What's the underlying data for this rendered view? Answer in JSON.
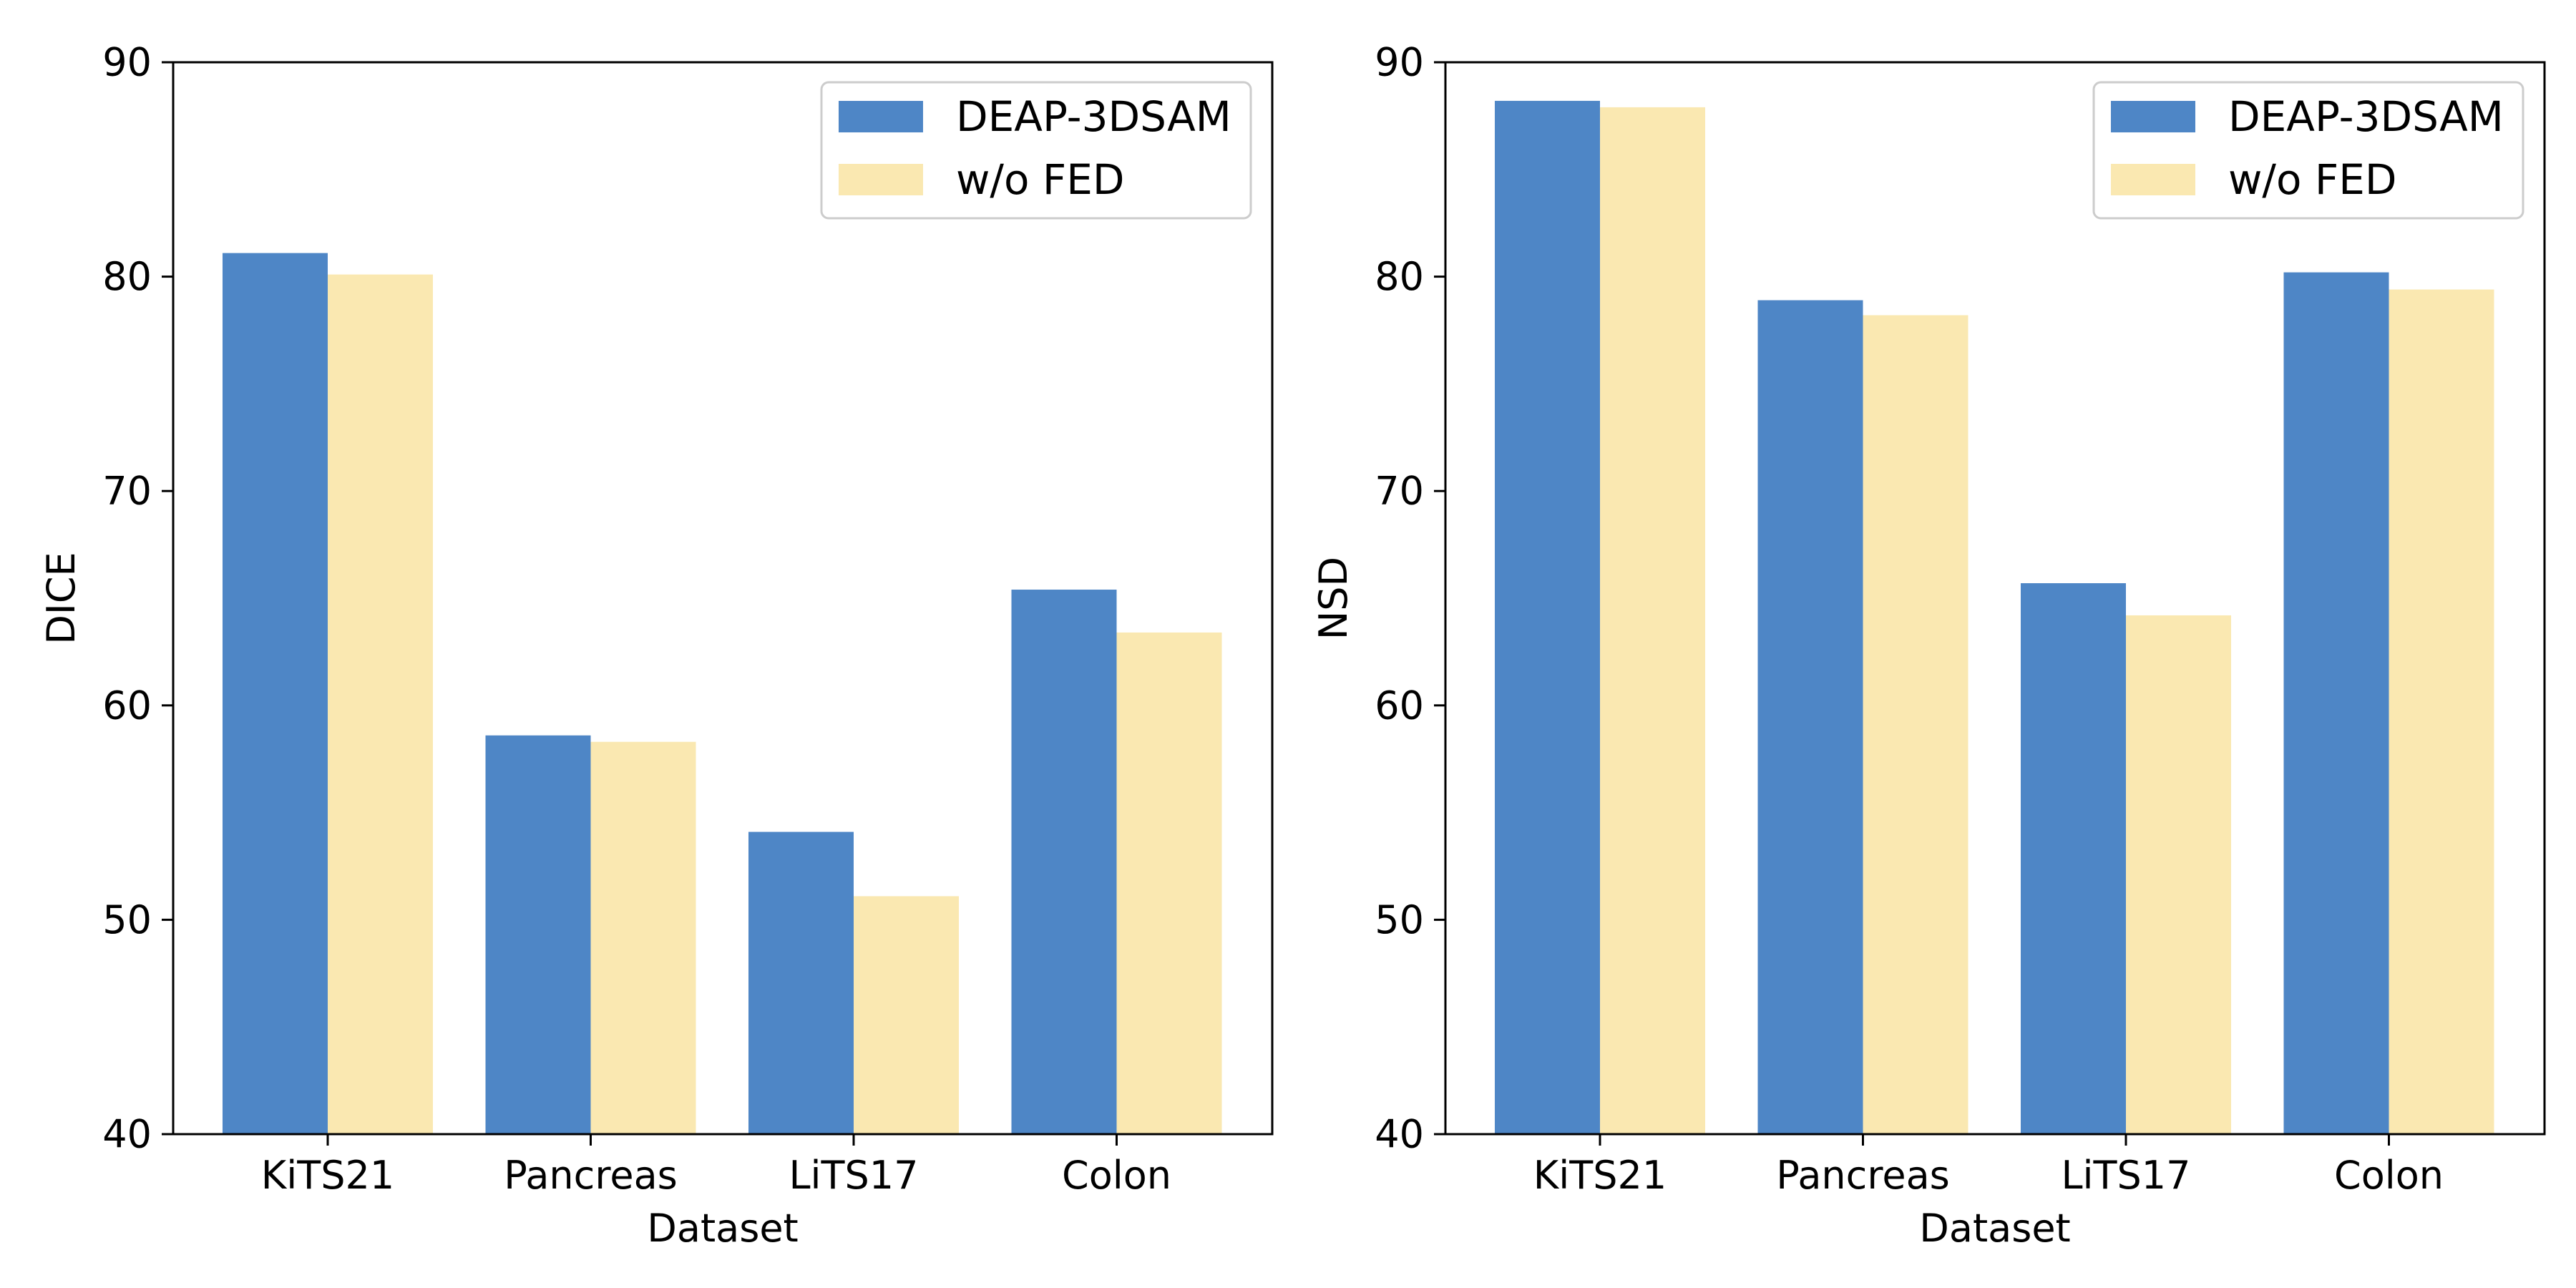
{
  "chart_data": [
    {
      "type": "bar",
      "title": "",
      "xlabel": "Dataset",
      "ylabel": "DICE",
      "ylim": [
        40,
        90
      ],
      "yticks": [
        40,
        50,
        60,
        70,
        80,
        90
      ],
      "categories": [
        "KiTS21",
        "Pancreas",
        "LiTS17",
        "Colon"
      ],
      "series": [
        {
          "name": "DEAP-3DSAM",
          "color": "#4e86c6",
          "values": [
            81.1,
            58.6,
            54.1,
            65.4
          ]
        },
        {
          "name": "w/o FED",
          "color": "#fae8b1",
          "values": [
            80.1,
            58.3,
            51.1,
            63.4
          ]
        }
      ],
      "legend_position": "top-right",
      "grid": false
    },
    {
      "type": "bar",
      "title": "",
      "xlabel": "Dataset",
      "ylabel": "NSD",
      "ylim": [
        40,
        90
      ],
      "yticks": [
        40,
        50,
        60,
        70,
        80,
        90
      ],
      "categories": [
        "KiTS21",
        "Pancreas",
        "LiTS17",
        "Colon"
      ],
      "series": [
        {
          "name": "DEAP-3DSAM",
          "color": "#4e86c6",
          "values": [
            88.2,
            78.9,
            65.7,
            80.2
          ]
        },
        {
          "name": "w/o FED",
          "color": "#fae8b1",
          "values": [
            87.9,
            78.2,
            64.2,
            79.4
          ]
        }
      ],
      "legend_position": "top-right",
      "grid": false
    }
  ]
}
